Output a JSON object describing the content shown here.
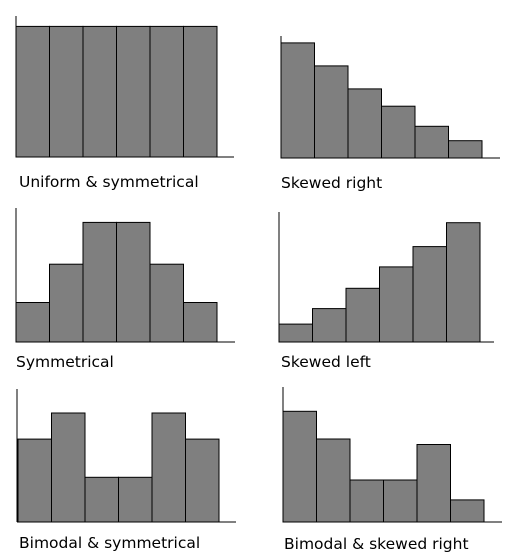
{
  "colors": {
    "bar_fill": "#7f7f7f",
    "bar_stroke": "#000000",
    "axis": "#000000"
  },
  "chart_data": [
    {
      "type": "bar",
      "title": "Uniform & symmetrical",
      "values": [
        10,
        10,
        10,
        10,
        10,
        10
      ],
      "ylim": [
        0,
        10.8
      ]
    },
    {
      "type": "bar",
      "title": "Skewed right",
      "values": [
        10,
        8,
        6,
        4.5,
        2.75,
        1.5
      ],
      "ylim": [
        0,
        10.6
      ]
    },
    {
      "type": "bar",
      "title": "Symmetrical",
      "values": [
        3.3,
        6.5,
        10,
        10,
        6.5,
        3.3
      ],
      "ylim": [
        0,
        11.2
      ]
    },
    {
      "type": "bar",
      "title": "Skewed left",
      "values": [
        1.5,
        2.8,
        4.5,
        6.3,
        8,
        10
      ],
      "ylim": [
        0,
        10.9
      ]
    },
    {
      "type": "bar",
      "title": "Bimodal & symmetrical",
      "values": [
        7.6,
        10,
        4.1,
        4.1,
        10,
        7.6
      ],
      "ylim": [
        0,
        12.2
      ]
    },
    {
      "type": "bar",
      "title": "Bimodal & skewed right",
      "values": [
        10,
        7.5,
        3.8,
        3.8,
        7,
        2
      ],
      "ylim": [
        0,
        12.2
      ]
    }
  ]
}
